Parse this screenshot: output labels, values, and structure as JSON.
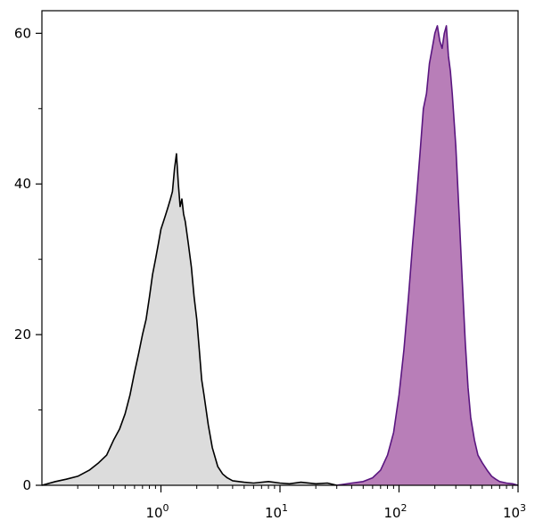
{
  "chart_data": {
    "type": "area",
    "title": "",
    "xlabel": "",
    "ylabel": "",
    "x_scale": "log",
    "xlim": [
      0.1,
      1000
    ],
    "ylim": [
      0,
      63
    ],
    "grid": false,
    "x_ticks": [
      {
        "value": 1,
        "base": "10",
        "exp": "0"
      },
      {
        "value": 10,
        "base": "10",
        "exp": "1"
      },
      {
        "value": 100,
        "base": "10",
        "exp": "2"
      },
      {
        "value": 1000,
        "base": "10",
        "exp": "3"
      }
    ],
    "y_ticks": [
      {
        "value": 0,
        "label": "0"
      },
      {
        "value": 20,
        "label": "20"
      },
      {
        "value": 40,
        "label": "40"
      },
      {
        "value": 60,
        "label": "60"
      }
    ],
    "series": [
      {
        "fill": "#dcdcdc",
        "stroke": "#000000",
        "x": [
          0.1,
          0.13,
          0.16,
          0.2,
          0.25,
          0.3,
          0.35,
          0.4,
          0.45,
          0.5,
          0.55,
          0.6,
          0.65,
          0.7,
          0.75,
          0.8,
          0.85,
          0.9,
          0.95,
          1.0,
          1.05,
          1.1,
          1.15,
          1.2,
          1.25,
          1.3,
          1.35,
          1.4,
          1.45,
          1.5,
          1.55,
          1.6,
          1.7,
          1.8,
          1.9,
          2.0,
          2.1,
          2.2,
          2.3,
          2.5,
          2.7,
          3.0,
          3.3,
          3.6,
          4.0,
          5.0,
          6.0,
          8.0,
          10.0,
          12.0,
          15.0,
          20.0,
          25.0,
          30.0
        ],
        "values": [
          0,
          0.5,
          0.8,
          1.2,
          2,
          3,
          4,
          6,
          7.5,
          9.5,
          12,
          15,
          17.5,
          20,
          22,
          25,
          28,
          30,
          32,
          34,
          35,
          36,
          37,
          38,
          39,
          42,
          44,
          40,
          37,
          38,
          36,
          35,
          32,
          29,
          25,
          22,
          18,
          14,
          12,
          8,
          5,
          2.5,
          1.5,
          1,
          0.6,
          0.4,
          0.3,
          0.5,
          0.3,
          0.2,
          0.4,
          0.2,
          0.3,
          0
        ]
      },
      {
        "fill": "#b87eb8",
        "stroke": "#5a1680",
        "x": [
          30,
          40,
          50,
          60,
          70,
          80,
          90,
          100,
          110,
          120,
          130,
          140,
          150,
          160,
          170,
          180,
          190,
          200,
          210,
          220,
          230,
          240,
          250,
          260,
          270,
          280,
          300,
          320,
          340,
          360,
          380,
          400,
          430,
          460,
          500,
          550,
          600,
          650,
          700,
          800,
          900,
          1000
        ],
        "values": [
          0,
          0.3,
          0.5,
          1,
          2,
          4,
          7,
          12,
          18,
          25,
          32,
          38,
          44,
          50,
          52,
          56,
          58,
          60,
          61,
          59,
          58,
          60,
          61,
          57,
          55,
          52,
          45,
          36,
          27,
          19,
          13,
          9,
          6,
          4,
          3,
          2,
          1.2,
          0.8,
          0.5,
          0.3,
          0.2,
          0
        ]
      }
    ]
  }
}
